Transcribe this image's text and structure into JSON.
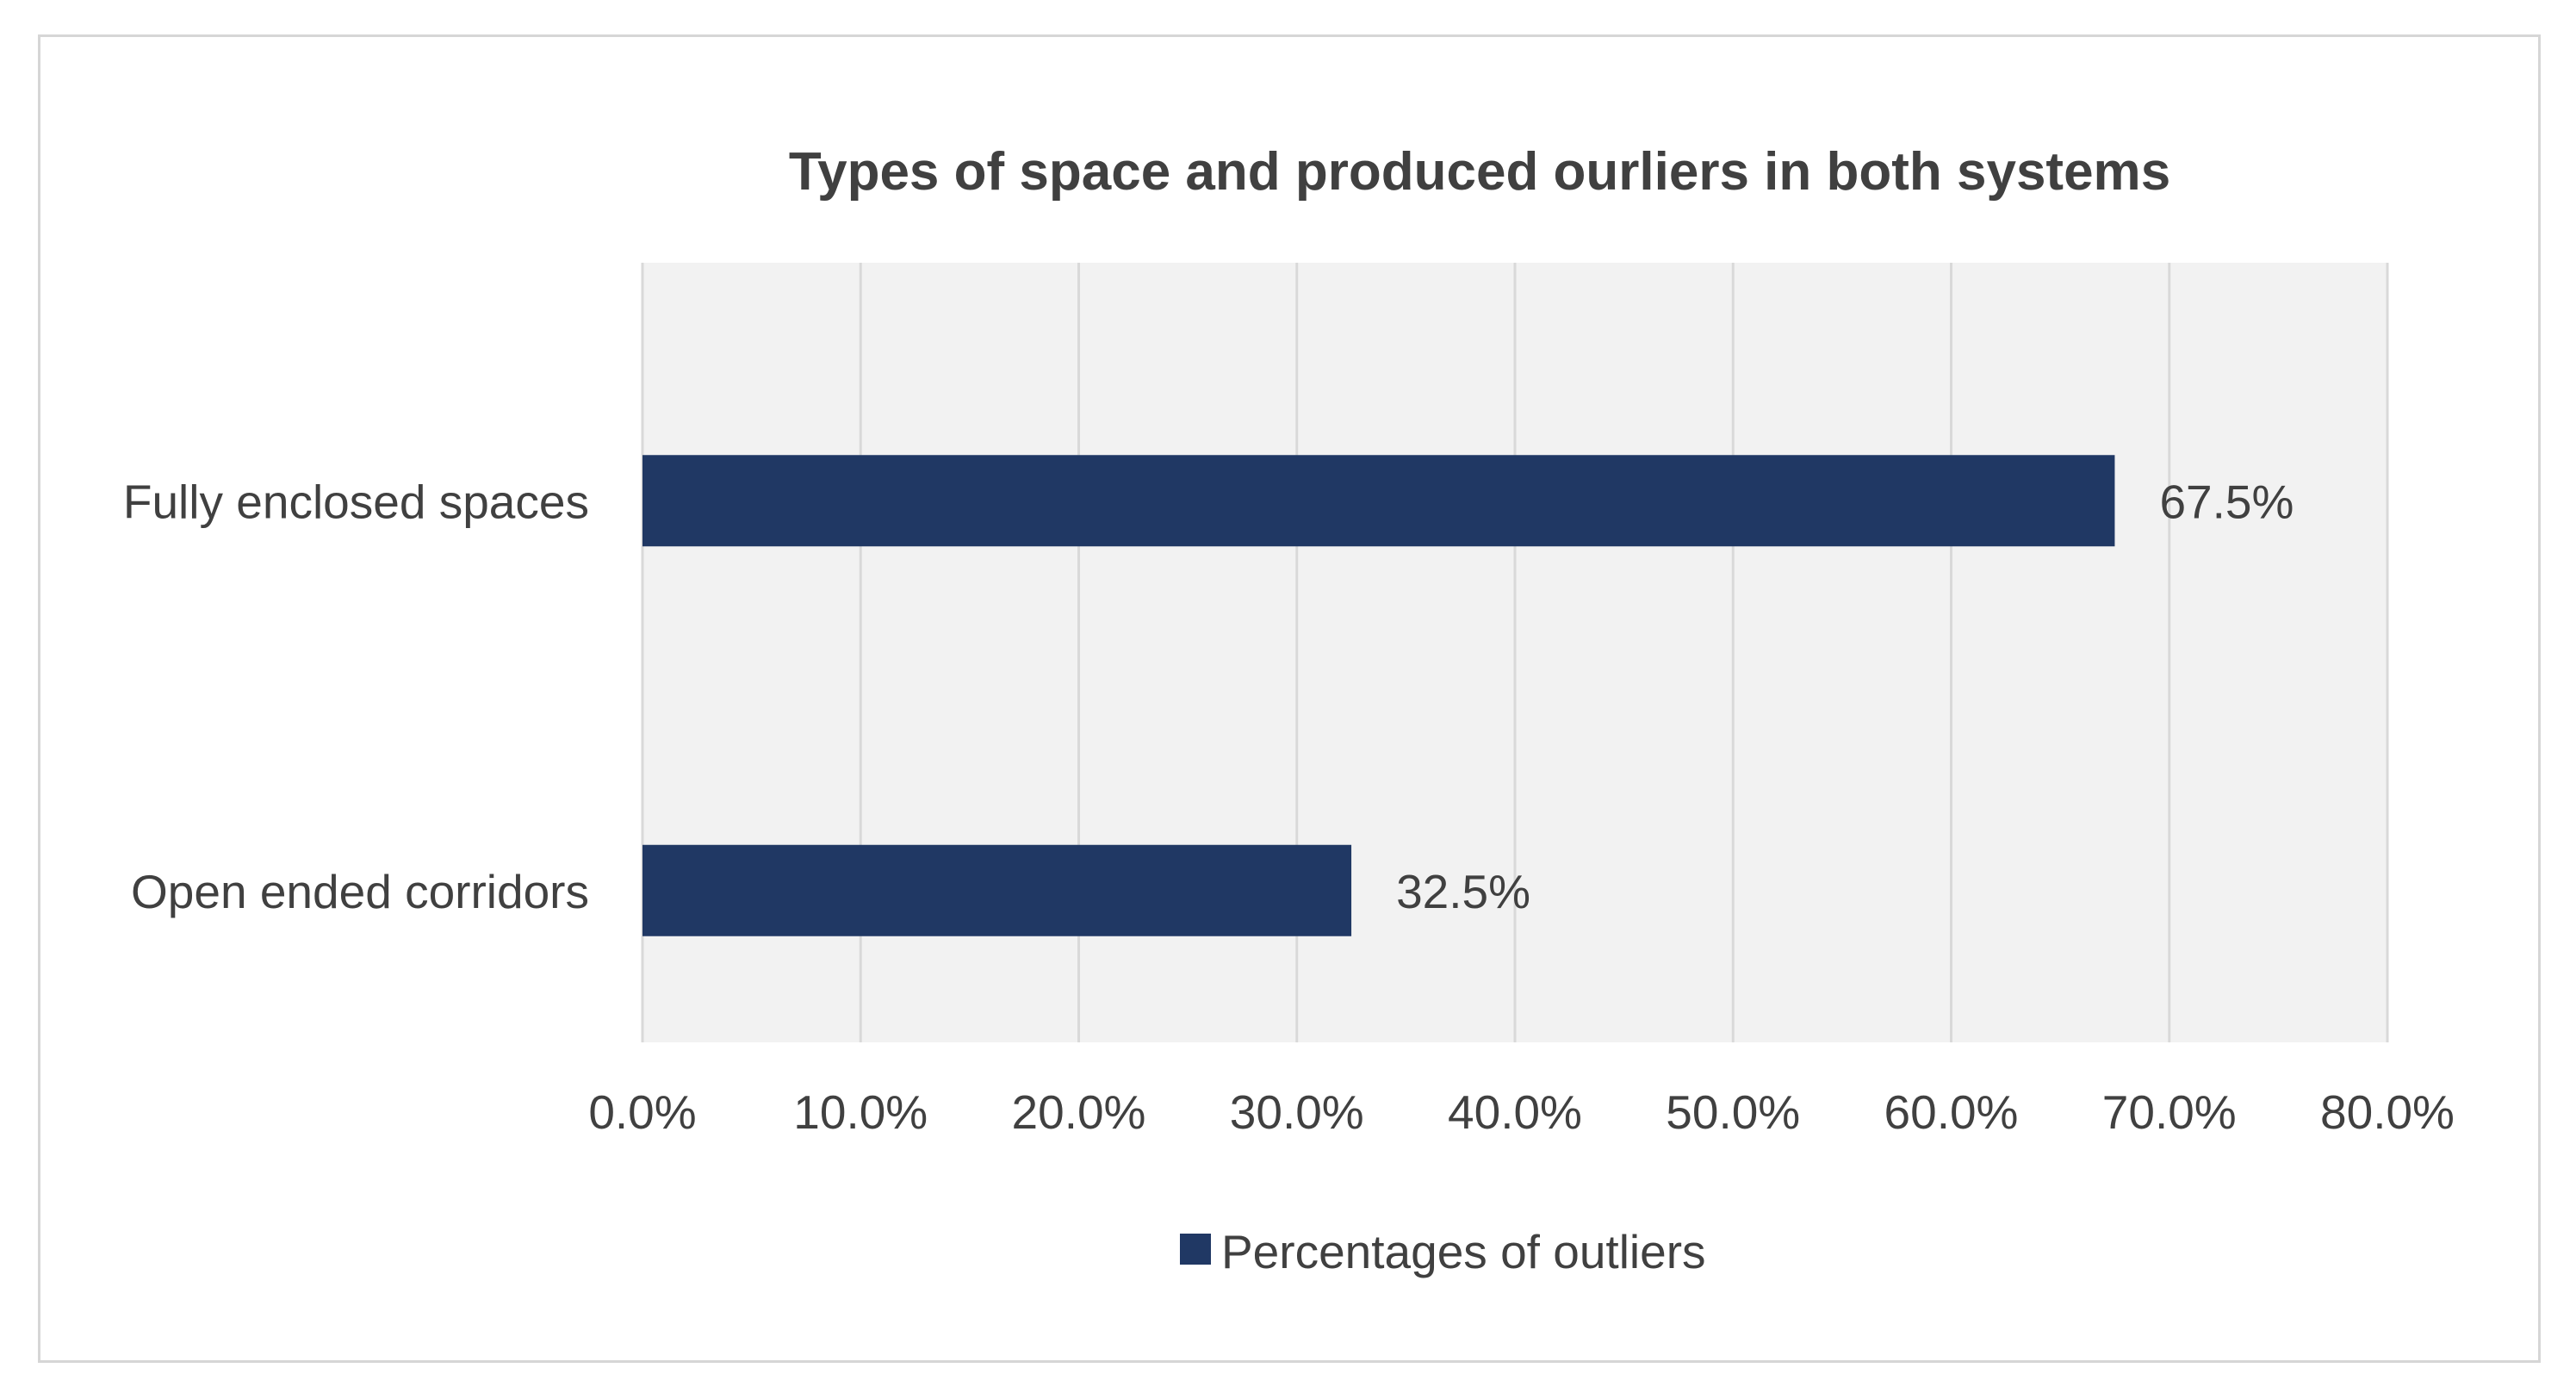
{
  "chart_data": {
    "type": "bar",
    "orientation": "horizontal",
    "title": "Types of space and produced ourliers in both systems",
    "categories": [
      "Fully enclosed spaces",
      "Open ended corridors"
    ],
    "series": [
      {
        "name": "Percentages of outliers",
        "values": [
          67.5,
          32.5
        ],
        "data_labels": [
          "67.5%",
          "32.5%"
        ],
        "color": "#203864"
      }
    ],
    "xlim": [
      0,
      80
    ],
    "x_ticks": [
      0,
      10,
      20,
      30,
      40,
      50,
      60,
      70,
      80
    ],
    "x_tick_labels": [
      "0.0%",
      "10.0%",
      "20.0%",
      "30.0%",
      "40.0%",
      "50.0%",
      "60.0%",
      "70.0%",
      "80.0%"
    ],
    "xlabel": "",
    "ylabel": "",
    "grid": true,
    "legend_position": "bottom",
    "plot_background": "#f2f2f2",
    "gridline_color": "#d9d9d9",
    "text_color": "#404040"
  }
}
